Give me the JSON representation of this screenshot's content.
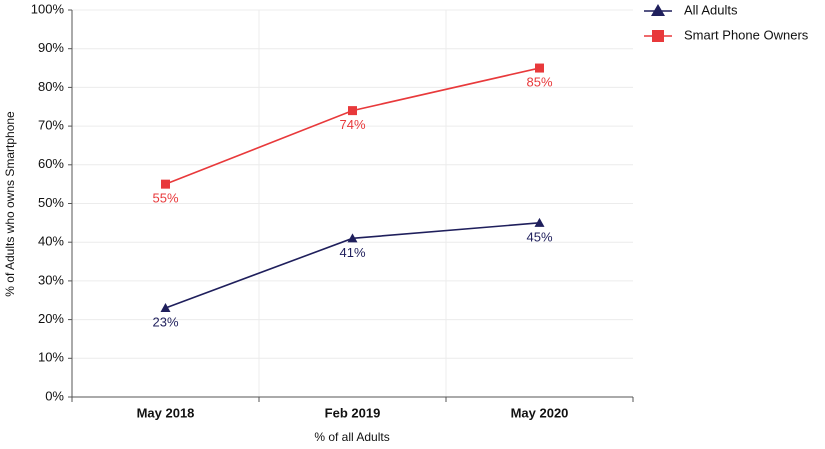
{
  "chart_data": {
    "type": "line",
    "x_label": "% of all Adults",
    "y_label": "% of Adults who owns Smartphone",
    "categories": [
      "May 2018",
      "Feb 2019",
      "May 2020"
    ],
    "series": [
      {
        "name": "All Adults",
        "color": "#1f1f5c",
        "marker": "triangle",
        "values": [
          23,
          41,
          45
        ],
        "value_labels": [
          "23%",
          "41%",
          "45%"
        ]
      },
      {
        "name": "Smart Phone Owners",
        "color": "#e8393b",
        "marker": "square",
        "values": [
          55,
          74,
          85
        ],
        "value_labels": [
          "55%",
          "74%",
          "85%"
        ]
      }
    ],
    "ylim": [
      0,
      100
    ],
    "yticks": [
      {
        "value": 0,
        "label": "0%"
      },
      {
        "value": 10,
        "label": "10%"
      },
      {
        "value": 20,
        "label": "20%"
      },
      {
        "value": 30,
        "label": "30%"
      },
      {
        "value": 40,
        "label": "40%"
      },
      {
        "value": 50,
        "label": "50%"
      },
      {
        "value": 60,
        "label": "60%"
      },
      {
        "value": 70,
        "label": "70%"
      },
      {
        "value": 80,
        "label": "80%"
      },
      {
        "value": 90,
        "label": "90%"
      },
      {
        "value": 100,
        "label": "100%"
      }
    ],
    "grid": true,
    "legend": "top-right"
  }
}
